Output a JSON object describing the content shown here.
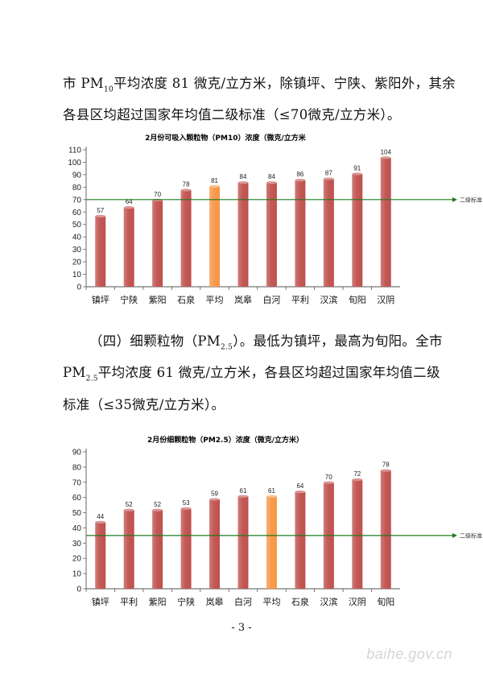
{
  "paragraph1": {
    "l1_a": "市 PM",
    "l1_sub": "10",
    "l1_b": "平均浓度 81 微克/立方米，除镇坪、宁陕、紫阳外，其余",
    "l2": "各县区均超过国家年均值二级标准（≤70微克/立方米）。"
  },
  "paragraph2": {
    "l1": "（四）细颗粒物（PM",
    "l1_sub": "2.5",
    "l1_b": "）。最低为镇坪，最高为旬阳。全市",
    "l2_a": "PM",
    "l2_sub": "2.5",
    "l2_b": "平均浓度 61 微克/立方米，各县区均超过国家年均值二级",
    "l3": "标准（≤35微克/立方米）。"
  },
  "chart_data": [
    {
      "type": "bar",
      "title": "2月份可吸入颗粒物（PM10）浓度（微克/立方米",
      "categories": [
        "镇坪",
        "宁陕",
        "紫阳",
        "石泉",
        "平均",
        "岚皋",
        "白河",
        "平利",
        "汉滨",
        "旬阳",
        "汉阴"
      ],
      "values": [
        57,
        64,
        70,
        78,
        81,
        84,
        84,
        86,
        87,
        91,
        104
      ],
      "highlight": "平均",
      "ylim": [
        0,
        110
      ],
      "yticks": [
        0,
        10,
        20,
        30,
        40,
        50,
        60,
        70,
        80,
        90,
        100,
        110
      ],
      "reference_line": {
        "value": 70,
        "label": "二级标准"
      },
      "colors": {
        "bar": "#c0504d",
        "highlight": "#f79646",
        "line": "#1e7b1e"
      }
    },
    {
      "type": "bar",
      "title": "2月份细颗粒物（PM2.5）浓度（微克/立方米）",
      "categories": [
        "镇坪",
        "平利",
        "紫阳",
        "宁陕",
        "岚皋",
        "白河",
        "平均",
        "石泉",
        "汉滨",
        "汉阴",
        "旬阳"
      ],
      "values": [
        44,
        52,
        52,
        53,
        59,
        61,
        61,
        64,
        70,
        72,
        78
      ],
      "highlight": "平均",
      "ylim": [
        0,
        90
      ],
      "yticks": [
        0,
        10,
        20,
        30,
        40,
        50,
        60,
        70,
        80,
        90
      ],
      "reference_line": {
        "value": 35,
        "label": "二级标准"
      },
      "colors": {
        "bar": "#c0504d",
        "highlight": "#f79646",
        "line": "#1e7b1e"
      }
    }
  ],
  "page_number": "- 3 -",
  "watermark": "baihe.gov.cn"
}
